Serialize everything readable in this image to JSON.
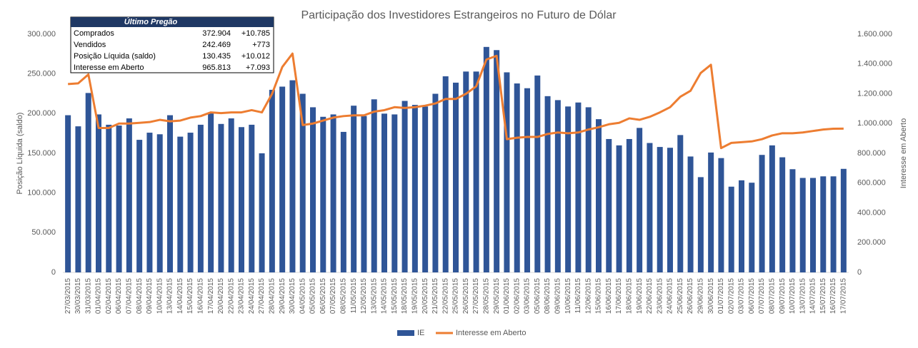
{
  "chart_data": {
    "type": "bar-line",
    "title": "Participação dos Investidores Estrangeiros no Futuro de Dólar",
    "ylabel": "Posição Líquida (saldo)",
    "y2label": "Interesse em Aberto",
    "grid": false,
    "legend": "bottom",
    "categories": [
      "27/03/2015",
      "30/03/2015",
      "31/03/2015",
      "01/04/2015",
      "02/04/2015",
      "06/04/2015",
      "07/04/2015",
      "08/04/2015",
      "09/04/2015",
      "10/04/2015",
      "13/04/2015",
      "14/04/2015",
      "15/04/2015",
      "16/04/2015",
      "17/04/2015",
      "20/04/2015",
      "22/04/2015",
      "23/04/2015",
      "24/04/2015",
      "27/04/2015",
      "28/04/2015",
      "29/04/2015",
      "30/04/2015",
      "04/05/2015",
      "05/05/2015",
      "06/05/2015",
      "07/05/2015",
      "08/05/2015",
      "11/05/2015",
      "12/05/2015",
      "13/05/2015",
      "14/05/2015",
      "15/05/2015",
      "18/05/2015",
      "19/05/2015",
      "20/05/2015",
      "21/05/2015",
      "22/05/2015",
      "25/05/2015",
      "26/05/2015",
      "27/05/2015",
      "28/05/2015",
      "29/05/2015",
      "01/06/2015",
      "02/06/2015",
      "03/06/2015",
      "05/06/2015",
      "08/06/2015",
      "09/06/2015",
      "10/06/2015",
      "11/06/2015",
      "12/06/2015",
      "15/06/2015",
      "16/06/2015",
      "17/06/2015",
      "18/06/2015",
      "19/06/2015",
      "22/06/2015",
      "23/06/2015",
      "24/06/2015",
      "25/06/2015",
      "26/06/2015",
      "29/06/2015",
      "30/06/2015",
      "01/07/2015",
      "02/07/2015",
      "03/07/2015",
      "06/07/2015",
      "07/07/2015",
      "08/07/2015",
      "09/07/2015",
      "10/07/2015",
      "13/07/2015",
      "14/07/2015",
      "15/07/2015",
      "16/07/2015",
      "17/07/2015"
    ],
    "series": [
      {
        "name": "IE",
        "type": "bar",
        "color": "#2f5597",
        "values": [
          198000,
          184000,
          226000,
          199000,
          186000,
          185000,
          194000,
          167000,
          176000,
          174000,
          198000,
          171000,
          176000,
          186000,
          201000,
          187000,
          194000,
          183000,
          186000,
          150000,
          230000,
          234000,
          242000,
          225000,
          208000,
          196000,
          199000,
          177000,
          210000,
          197000,
          218000,
          200000,
          199000,
          216000,
          211000,
          209000,
          225000,
          247000,
          239000,
          253000,
          253000,
          284000,
          280000,
          252000,
          238000,
          232000,
          248000,
          222000,
          217000,
          209000,
          214000,
          208000,
          193000,
          168000,
          160000,
          168000,
          182000,
          163000,
          158000,
          157000,
          173000,
          146000,
          120000,
          151000,
          144000,
          108000,
          116000,
          113000,
          148000,
          160000,
          145000,
          130000,
          119000,
          119000,
          121000,
          121000,
          130435
        ]
      },
      {
        "name": "Interesse em Aberto",
        "type": "line",
        "axis": "y2",
        "color": "#ed7d31",
        "values": [
          1265000,
          1270000,
          1330000,
          970000,
          970000,
          1000000,
          1000000,
          1005000,
          1010000,
          1025000,
          1015000,
          1020000,
          1040000,
          1050000,
          1075000,
          1070000,
          1075000,
          1075000,
          1090000,
          1075000,
          1200000,
          1380000,
          1470000,
          990000,
          1000000,
          1020000,
          1040000,
          1050000,
          1055000,
          1055000,
          1080000,
          1090000,
          1110000,
          1105000,
          1110000,
          1120000,
          1135000,
          1165000,
          1165000,
          1200000,
          1250000,
          1430000,
          1455000,
          895000,
          905000,
          910000,
          910000,
          930000,
          940000,
          935000,
          940000,
          960000,
          975000,
          995000,
          1005000,
          1035000,
          1025000,
          1045000,
          1075000,
          1110000,
          1180000,
          1220000,
          1340000,
          1395000,
          835000,
          870000,
          875000,
          880000,
          895000,
          920000,
          935000,
          935000,
          940000,
          950000,
          960000,
          965000,
          965813
        ]
      }
    ],
    "ylim": [
      0,
      300000
    ],
    "yticks": [
      0,
      {
        "value": 50000,
        "label": "50.000"
      },
      {
        "value": 100000,
        "label": "100.000"
      },
      {
        "value": 150000,
        "label": "150.000"
      },
      {
        "value": 200000,
        "label": "200.000"
      },
      {
        "value": 250000,
        "label": "250.000"
      },
      {
        "value": 300000,
        "label": "300.000"
      }
    ],
    "y2lim": [
      0,
      1600000
    ],
    "y2ticks": [
      0,
      {
        "value": 200000,
        "label": "200.000"
      },
      {
        "value": 400000,
        "label": "400.000"
      },
      {
        "value": 600000,
        "label": "600.000"
      },
      {
        "value": 800000,
        "label": "800.000"
      },
      {
        "value": 1000000,
        "label": "1.000.000"
      },
      {
        "value": 1200000,
        "label": "1.200.000"
      },
      {
        "value": 1400000,
        "label": "1.400.000"
      },
      {
        "value": 1600000,
        "label": "1.600.000"
      }
    ],
    "table": {
      "title": "Último Pregão",
      "rows": [
        [
          "Comprados",
          "372.904",
          "+10.785"
        ],
        [
          "Vendidos",
          "242.469",
          "+773"
        ],
        [
          "Posição Líquida (saldo)",
          "130.435",
          "+10.012"
        ],
        [
          "Interesse em Aberto",
          "965.813",
          "+7.093"
        ]
      ]
    }
  }
}
